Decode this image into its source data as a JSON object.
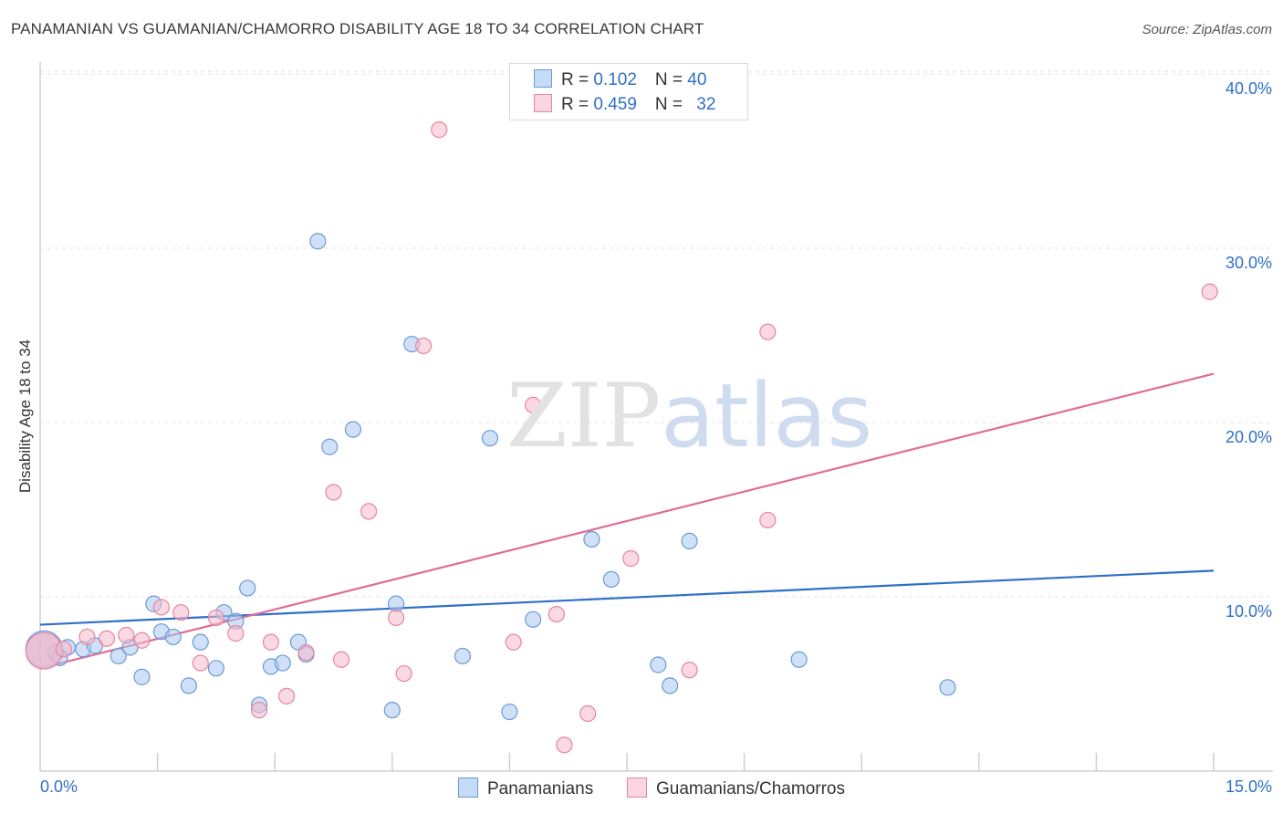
{
  "header": {
    "title": "PANAMANIAN VS GUAMANIAN/CHAMORRO DISABILITY AGE 18 TO 34 CORRELATION CHART",
    "source": "Source: ZipAtlas.com"
  },
  "watermark": {
    "zip": "ZIP",
    "atlas": "atlas"
  },
  "legend": {
    "rows": [
      {
        "r_label": "R = ",
        "r_value": "0.102",
        "n_label": "N = ",
        "n_value": "40",
        "color": "#a9c8f0"
      },
      {
        "r_label": "R = ",
        "r_value": "0.459",
        "n_label": "N = ",
        "n_value": "32",
        "color": "#f6b9cc"
      }
    ]
  },
  "chart_data": {
    "type": "scatter",
    "title": "PANAMANIAN VS GUAMANIAN/CHAMORRO DISABILITY AGE 18 TO 34 CORRELATION CHART",
    "xlabel": "",
    "ylabel": "Disability Age 18 to 34",
    "xlim": [
      0,
      15
    ],
    "ylim": [
      0,
      41
    ],
    "x_tick_labels": [
      "0.0%",
      "15.0%"
    ],
    "y_ticks": [
      10,
      20,
      30,
      40
    ],
    "y_tick_labels": [
      "10.0%",
      "20.0%",
      "30.0%",
      "40.0%"
    ],
    "grid": true,
    "series": [
      {
        "name": "Panamanians",
        "color": "#a9c8f0",
        "stroke": "#6a9ad6",
        "line_color": "#2f6fc9",
        "trend": {
          "x": [
            0,
            15
          ],
          "y": [
            8.4,
            11.5
          ]
        },
        "points": [
          {
            "x": 0.05,
            "y": 7.0,
            "big": true
          },
          {
            "x": 0.2,
            "y": 6.8
          },
          {
            "x": 0.35,
            "y": 7.1
          },
          {
            "x": 0.55,
            "y": 7.0
          },
          {
            "x": 0.7,
            "y": 7.2
          },
          {
            "x": 1.0,
            "y": 6.6
          },
          {
            "x": 1.15,
            "y": 7.1
          },
          {
            "x": 1.3,
            "y": 5.4
          },
          {
            "x": 1.45,
            "y": 9.6
          },
          {
            "x": 1.55,
            "y": 8.0
          },
          {
            "x": 1.7,
            "y": 7.7
          },
          {
            "x": 1.9,
            "y": 4.9
          },
          {
            "x": 2.05,
            "y": 7.4
          },
          {
            "x": 2.25,
            "y": 5.9
          },
          {
            "x": 2.35,
            "y": 9.1
          },
          {
            "x": 2.5,
            "y": 8.6
          },
          {
            "x": 2.65,
            "y": 10.5
          },
          {
            "x": 2.8,
            "y": 3.8
          },
          {
            "x": 2.95,
            "y": 6.0
          },
          {
            "x": 3.1,
            "y": 6.2
          },
          {
            "x": 3.3,
            "y": 7.4
          },
          {
            "x": 3.4,
            "y": 6.7
          },
          {
            "x": 3.55,
            "y": 30.4
          },
          {
            "x": 3.7,
            "y": 18.6
          },
          {
            "x": 4.0,
            "y": 19.6
          },
          {
            "x": 4.5,
            "y": 3.5
          },
          {
            "x": 4.55,
            "y": 9.6
          },
          {
            "x": 4.75,
            "y": 24.5
          },
          {
            "x": 5.4,
            "y": 6.6
          },
          {
            "x": 5.75,
            "y": 19.1
          },
          {
            "x": 6.0,
            "y": 3.4
          },
          {
            "x": 6.3,
            "y": 8.7
          },
          {
            "x": 7.05,
            "y": 13.3
          },
          {
            "x": 7.3,
            "y": 11.0
          },
          {
            "x": 7.9,
            "y": 6.1
          },
          {
            "x": 8.05,
            "y": 4.9
          },
          {
            "x": 8.3,
            "y": 13.2
          },
          {
            "x": 9.7,
            "y": 6.4
          },
          {
            "x": 11.6,
            "y": 4.8
          },
          {
            "x": 0.25,
            "y": 6.5
          }
        ]
      },
      {
        "name": "Guamanians/Chamorros",
        "color": "#f6b9cc",
        "stroke": "#e8849f",
        "line_color": "#e26b93",
        "trend": {
          "x": [
            0,
            15
          ],
          "y": [
            5.9,
            22.8
          ]
        },
        "points": [
          {
            "x": 0.05,
            "y": 6.9,
            "big": true
          },
          {
            "x": 0.3,
            "y": 7.0
          },
          {
            "x": 0.6,
            "y": 7.7
          },
          {
            "x": 0.85,
            "y": 7.6
          },
          {
            "x": 1.1,
            "y": 7.8
          },
          {
            "x": 1.3,
            "y": 7.5
          },
          {
            "x": 1.55,
            "y": 9.4
          },
          {
            "x": 1.8,
            "y": 9.1
          },
          {
            "x": 2.05,
            "y": 6.2
          },
          {
            "x": 2.25,
            "y": 8.8
          },
          {
            "x": 2.5,
            "y": 7.9
          },
          {
            "x": 2.8,
            "y": 3.5
          },
          {
            "x": 2.95,
            "y": 7.4
          },
          {
            "x": 3.15,
            "y": 4.3
          },
          {
            "x": 3.4,
            "y": 6.8
          },
          {
            "x": 3.75,
            "y": 16.0
          },
          {
            "x": 3.85,
            "y": 6.4
          },
          {
            "x": 4.2,
            "y": 14.9
          },
          {
            "x": 4.55,
            "y": 8.8
          },
          {
            "x": 4.65,
            "y": 5.6
          },
          {
            "x": 4.9,
            "y": 24.4
          },
          {
            "x": 5.1,
            "y": 36.8
          },
          {
            "x": 6.05,
            "y": 7.4
          },
          {
            "x": 6.3,
            "y": 21.0
          },
          {
            "x": 6.6,
            "y": 9.0
          },
          {
            "x": 6.7,
            "y": 1.5
          },
          {
            "x": 7.0,
            "y": 3.3
          },
          {
            "x": 7.55,
            "y": 12.2
          },
          {
            "x": 8.3,
            "y": 5.8
          },
          {
            "x": 9.3,
            "y": 25.2
          },
          {
            "x": 9.3,
            "y": 14.4
          },
          {
            "x": 14.95,
            "y": 27.5
          }
        ]
      }
    ]
  }
}
